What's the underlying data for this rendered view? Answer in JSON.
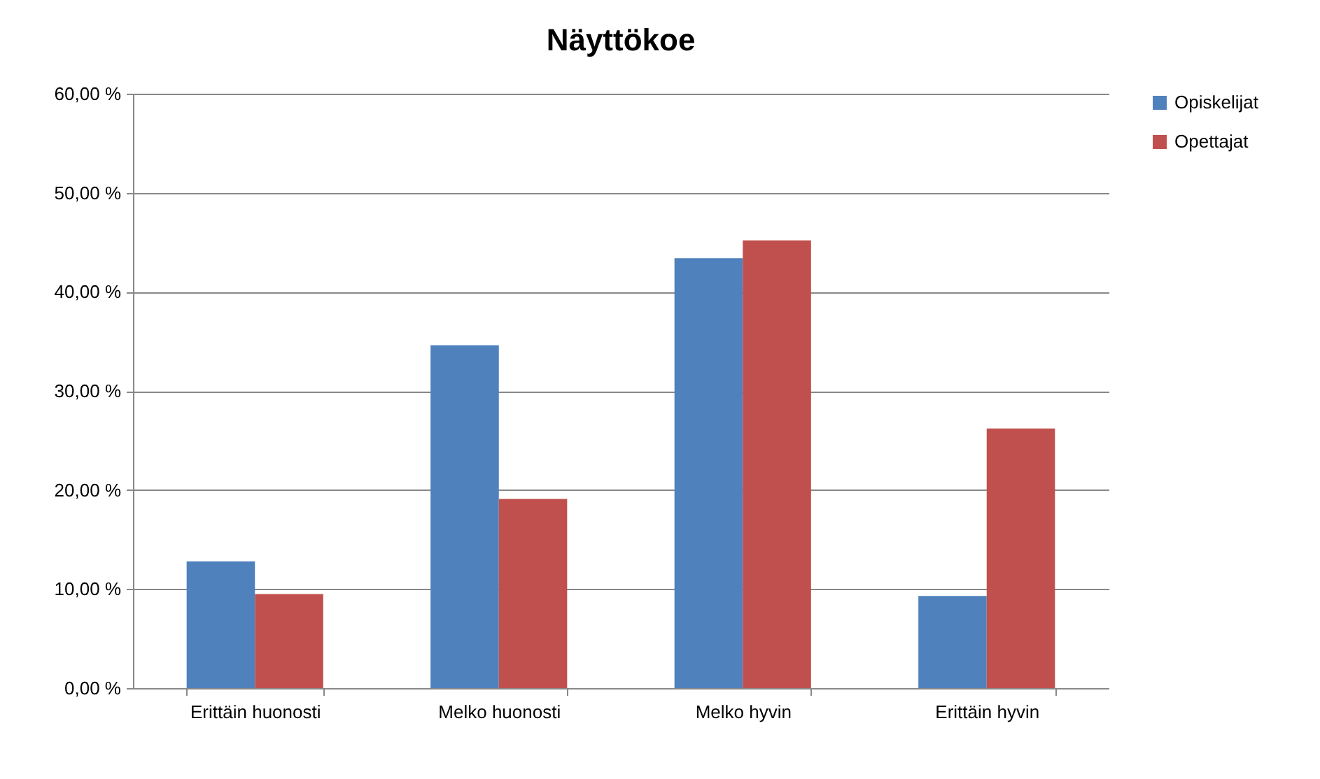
{
  "chart_data": {
    "type": "bar",
    "title": "Näyttökoe",
    "categories": [
      "Erittäin huonosti",
      "Melko huonosti",
      "Melko hyvin",
      "Erittäin hyvin"
    ],
    "series": [
      {
        "name": "Opiskelijat",
        "color": "#4f81bd",
        "values": [
          12.8,
          34.6,
          43.4,
          9.3
        ]
      },
      {
        "name": "Opettajat",
        "color": "#c0504d",
        "values": [
          9.5,
          19.1,
          45.2,
          26.2
        ]
      }
    ],
    "ylim": [
      0,
      60
    ],
    "yticks": [
      {
        "value": 0,
        "label": "0,00 %"
      },
      {
        "value": 10,
        "label": "10,00 %"
      },
      {
        "value": 20,
        "label": "20,00 %"
      },
      {
        "value": 30,
        "label": "30,00 %"
      },
      {
        "value": 40,
        "label": "40,00 %"
      },
      {
        "value": 50,
        "label": "50,00 %"
      },
      {
        "value": 60,
        "label": "60,00 %"
      }
    ],
    "grid": "y",
    "legend": "right"
  }
}
